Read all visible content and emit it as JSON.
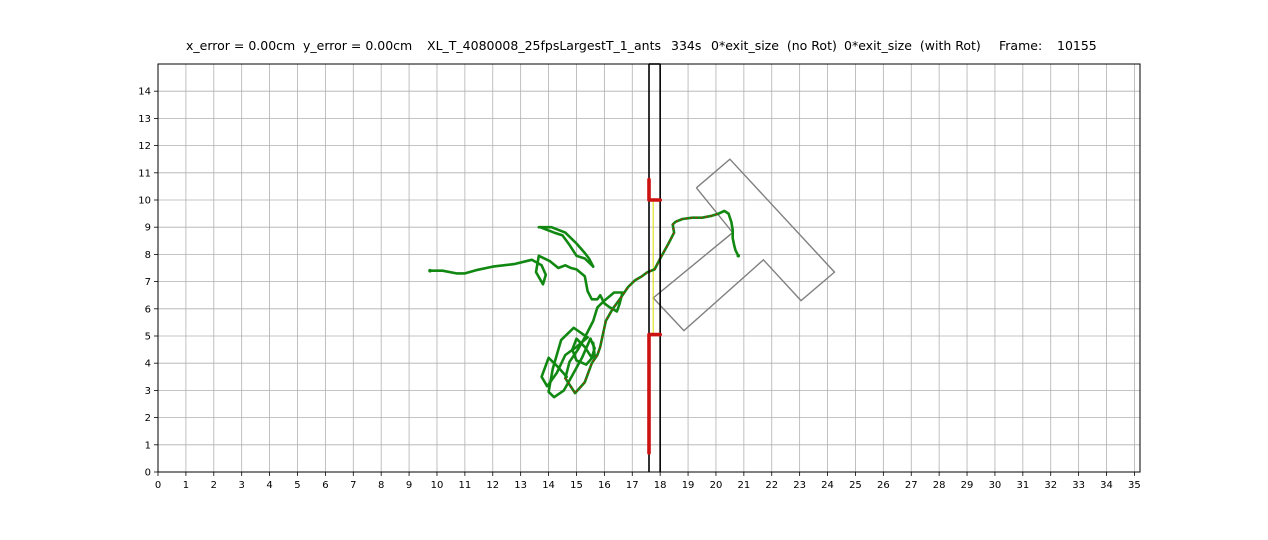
{
  "title": {
    "x_error": "x_error = 0.00cm",
    "y_error": "y_error = 0.00cm",
    "name": "XL_T_4080008_25fpsLargestT_1_ants",
    "time": "334s",
    "exit_no_rot": "0*exit_size  (no Rot)",
    "exit_with_rot": "0*exit_size  (with Rot)",
    "frame_label": "Frame:",
    "frame_value": "10155"
  },
  "chart_data": {
    "type": "line",
    "xlim": [
      0,
      35.2
    ],
    "ylim": [
      0,
      15
    ],
    "x_ticks": [
      0,
      1,
      2,
      3,
      4,
      5,
      6,
      7,
      8,
      9,
      10,
      11,
      12,
      13,
      14,
      15,
      16,
      17,
      18,
      19,
      20,
      21,
      22,
      23,
      24,
      25,
      26,
      27,
      28,
      29,
      30,
      31,
      32,
      33,
      34,
      35
    ],
    "y_ticks": [
      0,
      1,
      2,
      3,
      4,
      5,
      6,
      7,
      8,
      9,
      10,
      11,
      12,
      13,
      14
    ],
    "grid": true,
    "colors": {
      "trajectory": "#118811",
      "trajectory_overlay": "#cc1111",
      "walls": "#000000",
      "wall_highlight": "#cc1111",
      "load": "#808080",
      "exit_line": "#dddd00",
      "grid": "#b0b0b0"
    },
    "walls": [
      {
        "x": [
          17.6,
          17.6
        ],
        "y": [
          0,
          15
        ]
      },
      {
        "x": [
          18.0,
          18.0
        ],
        "y": [
          0,
          15
        ]
      },
      {
        "x": [
          17.6,
          18.0
        ],
        "y": [
          15,
          15
        ]
      }
    ],
    "wall_highlights": [
      {
        "x": [
          17.6,
          17.6,
          18.0
        ],
        "y": [
          0.7,
          5.05,
          5.05
        ]
      },
      {
        "x": [
          17.6,
          17.6,
          18.0
        ],
        "y": [
          10.75,
          10.0,
          10.0
        ]
      }
    ],
    "exit_line": {
      "x": [
        17.75,
        17.75
      ],
      "y": [
        5.05,
        10.0
      ]
    },
    "load_shape": [
      [
        19.3,
        10.45
      ],
      [
        20.5,
        11.5
      ],
      [
        24.25,
        7.35
      ],
      [
        23.05,
        6.3
      ],
      [
        21.7,
        7.8
      ],
      [
        18.85,
        5.2
      ],
      [
        17.75,
        6.4
      ],
      [
        20.6,
        8.8
      ],
      [
        19.3,
        10.45
      ]
    ],
    "trajectory": {
      "x": [
        9.75,
        10.2,
        10.7,
        11.0,
        11.4,
        12.0,
        12.8,
        13.4,
        13.75,
        13.9,
        13.8,
        13.55,
        13.65,
        14.05,
        14.35,
        14.6,
        14.8,
        15.0,
        15.3,
        15.4,
        15.55,
        15.75,
        15.85,
        16.0,
        16.2,
        16.45,
        16.55,
        16.65,
        16.35,
        16.0,
        15.75,
        15.6,
        15.3,
        15.05,
        14.75,
        14.6,
        14.95,
        15.3,
        15.55,
        15.75,
        15.85,
        16.05,
        16.3,
        16.55,
        16.85,
        17.1,
        17.35,
        17.55,
        17.8,
        18.0,
        18.3,
        18.5,
        18.45,
        18.55,
        18.8,
        19.15,
        19.5,
        19.85,
        20.1,
        20.3,
        20.45,
        20.55,
        20.6,
        20.6,
        20.65,
        20.7,
        20.8
      ],
      "y": [
        7.4,
        7.4,
        7.3,
        7.3,
        7.42,
        7.55,
        7.65,
        7.8,
        7.6,
        7.25,
        6.9,
        7.35,
        7.95,
        7.75,
        7.5,
        7.6,
        7.5,
        7.45,
        7.2,
        6.65,
        6.35,
        6.35,
        6.5,
        6.2,
        6.05,
        5.9,
        6.2,
        6.6,
        6.6,
        6.3,
        6.05,
        5.55,
        4.95,
        4.5,
        4.05,
        3.45,
        2.9,
        3.3,
        4.0,
        4.3,
        4.6,
        5.55,
        6.0,
        6.35,
        6.8,
        7.05,
        7.2,
        7.35,
        7.45,
        7.85,
        8.4,
        8.8,
        9.1,
        9.2,
        9.3,
        9.35,
        9.35,
        9.42,
        9.5,
        9.6,
        9.5,
        9.2,
        8.9,
        8.6,
        8.35,
        8.15,
        7.95
      ]
    },
    "trajectory_overlay": {
      "x": [
        14.6,
        14.95,
        15.3,
        15.55,
        15.75,
        15.85,
        16.05,
        16.3,
        16.55,
        16.85,
        17.1,
        17.35,
        17.55,
        17.8,
        18.0,
        18.3,
        18.5,
        18.45,
        18.55,
        18.8,
        19.15,
        19.5,
        19.85,
        20.1
      ],
      "y": [
        3.45,
        2.9,
        3.3,
        4.0,
        4.3,
        4.6,
        5.55,
        6.0,
        6.35,
        6.8,
        7.05,
        7.2,
        7.35,
        7.45,
        7.85,
        8.4,
        8.8,
        9.1,
        9.2,
        9.3,
        9.35,
        9.35,
        9.42,
        9.5
      ]
    },
    "trajectory_extra": [
      {
        "x": [
          13.65,
          14.1,
          14.6,
          15.0,
          15.3,
          15.45,
          15.6
        ],
        "y": [
          9.0,
          9.0,
          8.8,
          8.4,
          8.05,
          7.85,
          7.55
        ]
      },
      {
        "x": [
          15.6,
          15.3,
          15.0,
          14.75,
          14.5,
          14.2,
          13.95,
          13.7
        ],
        "y": [
          7.55,
          7.85,
          7.95,
          8.35,
          8.7,
          8.8,
          8.9,
          9.0
        ]
      },
      {
        "x": [
          14.65,
          14.3,
          14.0,
          13.75,
          13.95,
          14.3,
          14.6,
          15.0,
          15.4
        ],
        "y": [
          3.5,
          3.9,
          4.2,
          3.5,
          3.15,
          3.65,
          4.3,
          4.6,
          4.95
        ]
      },
      {
        "x": [
          15.4,
          14.9,
          14.45,
          14.15,
          14.0,
          14.2,
          14.55,
          14.85,
          15.2,
          15.5
        ],
        "y": [
          4.95,
          5.3,
          4.85,
          3.8,
          2.95,
          2.75,
          3.0,
          3.55,
          4.2,
          4.9
        ]
      },
      {
        "x": [
          15.5,
          15.65,
          15.55,
          15.3,
          15.0,
          14.85,
          15.0,
          15.35,
          15.65,
          15.6
        ],
        "y": [
          4.9,
          4.55,
          4.2,
          4.6,
          4.9,
          4.5,
          4.1,
          3.95,
          4.3,
          4.75
        ]
      }
    ]
  }
}
